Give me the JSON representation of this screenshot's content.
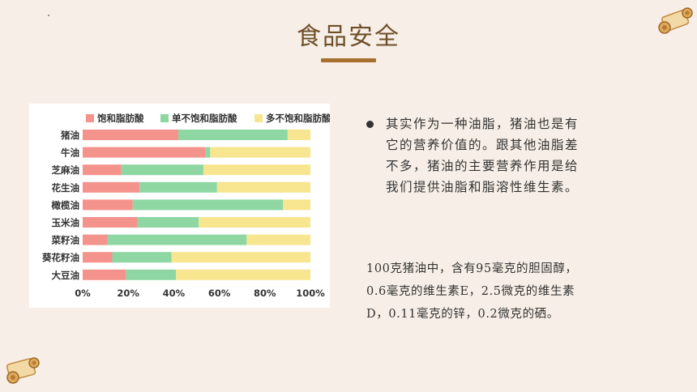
{
  "page": {
    "title": "食品安全",
    "bullet_text": "其实作为一种油脂，猪油也是有它的营养价值的。跟其他油脂差不多，猪油的主要营养作用是给我们提供油脂和脂溶性维生素。",
    "note_text": "100克猪油中，含有95毫克的胆固醇，0.6毫克的维生素E，2.5微克的维生素D，0.11毫克的锌，0.2微克的硒。",
    "colors": {
      "title": "#6e4f2a",
      "accent_bar": "#a8702f",
      "background": "#f7efe7"
    },
    "icons": [
      "scroll-decoration-icon"
    ]
  },
  "chart_data": {
    "type": "bar",
    "orientation": "horizontal",
    "stacked": true,
    "percent": true,
    "title": "",
    "xlabel": "",
    "ylabel": "",
    "xlim": [
      0,
      100
    ],
    "x_ticks": [
      "0%",
      "20%",
      "40%",
      "60%",
      "80%",
      "100%"
    ],
    "grid": false,
    "legend_position": "top",
    "categories": [
      "猪油",
      "牛油",
      "芝麻油",
      "花生油",
      "橄榄油",
      "玉米油",
      "菜籽油",
      "葵花籽油",
      "大豆油"
    ],
    "series": [
      {
        "name": "饱和脂肪酸",
        "color": "#f4938c",
        "values": [
          42,
          54,
          17,
          25,
          22,
          24,
          11,
          13,
          19
        ]
      },
      {
        "name": "单不饱和脂肪酸",
        "color": "#8ed7a3",
        "values": [
          48,
          2,
          36,
          34,
          66,
          27,
          61,
          26,
          22
        ]
      },
      {
        "name": "多不饱和脂肪酸",
        "color": "#f7e68f",
        "values": [
          10,
          44,
          47,
          41,
          12,
          49,
          28,
          61,
          59
        ]
      }
    ]
  }
}
